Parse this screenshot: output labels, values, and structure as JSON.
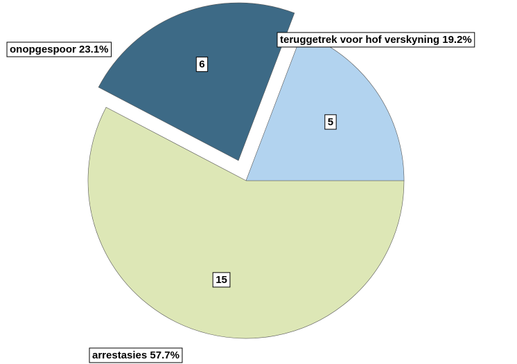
{
  "chart_data": {
    "type": "pie",
    "labels": [
      "arrestasies 57.7%",
      "onopgespoor 23.1%",
      "teruggetrek voor hof verskyning 19.2%"
    ],
    "values": [
      15,
      6,
      5
    ],
    "colors": [
      "#dde7b6",
      "#3d6a86",
      "#b2d3ef"
    ],
    "exploded": [
      false,
      true,
      false
    ]
  }
}
